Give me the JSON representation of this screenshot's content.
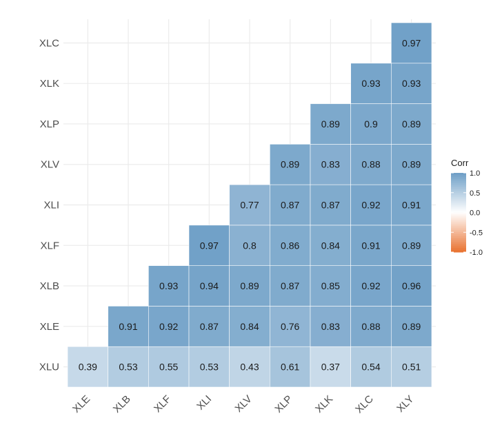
{
  "chart_data": {
    "type": "heatmap",
    "title": "",
    "xlabel": "",
    "ylabel": "",
    "x_categories": [
      "XLE",
      "XLB",
      "XLF",
      "XLI",
      "XLV",
      "XLP",
      "XLK",
      "XLC",
      "XLY"
    ],
    "y_categories": [
      "XLU",
      "XLE",
      "XLB",
      "XLF",
      "XLI",
      "XLV",
      "XLP",
      "XLK",
      "XLC"
    ],
    "cells": [
      {
        "x": "XLE",
        "y": "XLU",
        "value": 0.39,
        "label": "0.39"
      },
      {
        "x": "XLB",
        "y": "XLU",
        "value": 0.53,
        "label": "0.53"
      },
      {
        "x": "XLF",
        "y": "XLU",
        "value": 0.55,
        "label": "0.55"
      },
      {
        "x": "XLI",
        "y": "XLU",
        "value": 0.53,
        "label": "0.53"
      },
      {
        "x": "XLV",
        "y": "XLU",
        "value": 0.43,
        "label": "0.43"
      },
      {
        "x": "XLP",
        "y": "XLU",
        "value": 0.61,
        "label": "0.61"
      },
      {
        "x": "XLK",
        "y": "XLU",
        "value": 0.37,
        "label": "0.37"
      },
      {
        "x": "XLC",
        "y": "XLU",
        "value": 0.54,
        "label": "0.54"
      },
      {
        "x": "XLY",
        "y": "XLU",
        "value": 0.51,
        "label": "0.51"
      },
      {
        "x": "XLB",
        "y": "XLE",
        "value": 0.91,
        "label": "0.91"
      },
      {
        "x": "XLF",
        "y": "XLE",
        "value": 0.92,
        "label": "0.92"
      },
      {
        "x": "XLI",
        "y": "XLE",
        "value": 0.87,
        "label": "0.87"
      },
      {
        "x": "XLV",
        "y": "XLE",
        "value": 0.84,
        "label": "0.84"
      },
      {
        "x": "XLP",
        "y": "XLE",
        "value": 0.76,
        "label": "0.76"
      },
      {
        "x": "XLK",
        "y": "XLE",
        "value": 0.83,
        "label": "0.83"
      },
      {
        "x": "XLC",
        "y": "XLE",
        "value": 0.88,
        "label": "0.88"
      },
      {
        "x": "XLY",
        "y": "XLE",
        "value": 0.89,
        "label": "0.89"
      },
      {
        "x": "XLF",
        "y": "XLB",
        "value": 0.93,
        "label": "0.93"
      },
      {
        "x": "XLI",
        "y": "XLB",
        "value": 0.94,
        "label": "0.94"
      },
      {
        "x": "XLV",
        "y": "XLB",
        "value": 0.89,
        "label": "0.89"
      },
      {
        "x": "XLP",
        "y": "XLB",
        "value": 0.87,
        "label": "0.87"
      },
      {
        "x": "XLK",
        "y": "XLB",
        "value": 0.85,
        "label": "0.85"
      },
      {
        "x": "XLC",
        "y": "XLB",
        "value": 0.92,
        "label": "0.92"
      },
      {
        "x": "XLY",
        "y": "XLB",
        "value": 0.96,
        "label": "0.96"
      },
      {
        "x": "XLI",
        "y": "XLF",
        "value": 0.97,
        "label": "0.97"
      },
      {
        "x": "XLV",
        "y": "XLF",
        "value": 0.8,
        "label": "0.8"
      },
      {
        "x": "XLP",
        "y": "XLF",
        "value": 0.86,
        "label": "0.86"
      },
      {
        "x": "XLK",
        "y": "XLF",
        "value": 0.84,
        "label": "0.84"
      },
      {
        "x": "XLC",
        "y": "XLF",
        "value": 0.91,
        "label": "0.91"
      },
      {
        "x": "XLY",
        "y": "XLF",
        "value": 0.89,
        "label": "0.89"
      },
      {
        "x": "XLV",
        "y": "XLI",
        "value": 0.77,
        "label": "0.77"
      },
      {
        "x": "XLP",
        "y": "XLI",
        "value": 0.87,
        "label": "0.87"
      },
      {
        "x": "XLK",
        "y": "XLI",
        "value": 0.87,
        "label": "0.87"
      },
      {
        "x": "XLC",
        "y": "XLI",
        "value": 0.92,
        "label": "0.92"
      },
      {
        "x": "XLY",
        "y": "XLI",
        "value": 0.91,
        "label": "0.91"
      },
      {
        "x": "XLP",
        "y": "XLV",
        "value": 0.89,
        "label": "0.89"
      },
      {
        "x": "XLK",
        "y": "XLV",
        "value": 0.83,
        "label": "0.83"
      },
      {
        "x": "XLC",
        "y": "XLV",
        "value": 0.88,
        "label": "0.88"
      },
      {
        "x": "XLY",
        "y": "XLV",
        "value": 0.89,
        "label": "0.89"
      },
      {
        "x": "XLK",
        "y": "XLP",
        "value": 0.89,
        "label": "0.89"
      },
      {
        "x": "XLC",
        "y": "XLP",
        "value": 0.9,
        "label": "0.9"
      },
      {
        "x": "XLY",
        "y": "XLP",
        "value": 0.89,
        "label": "0.89"
      },
      {
        "x": "XLC",
        "y": "XLK",
        "value": 0.93,
        "label": "0.93"
      },
      {
        "x": "XLY",
        "y": "XLK",
        "value": 0.93,
        "label": "0.93"
      },
      {
        "x": "XLY",
        "y": "XLC",
        "value": 0.97,
        "label": "0.97"
      }
    ],
    "legend": {
      "title": "Corr",
      "placement": "right",
      "ticks": [
        {
          "value": 1.0,
          "label": "1.0"
        },
        {
          "value": 0.5,
          "label": "0.5"
        },
        {
          "value": 0.0,
          "label": "0.0"
        },
        {
          "value": -0.5,
          "label": "-0.5"
        },
        {
          "value": -1.0,
          "label": "-1.0"
        }
      ],
      "range": [
        -1,
        1
      ]
    },
    "colors": {
      "high": "#6d9ec6",
      "mid": "#ffffff",
      "low": "#e8712f",
      "grid": "#ebebeb"
    },
    "grid": true
  }
}
